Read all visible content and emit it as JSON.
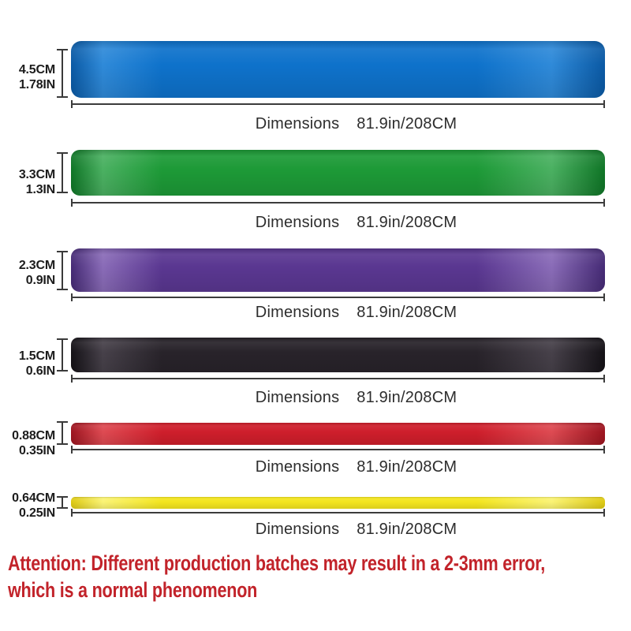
{
  "page": {
    "background": "#ffffff",
    "dimension_label": "Dimensions"
  },
  "bands": [
    {
      "color_name": "blue",
      "color": "#0e72cb",
      "highlight_color": "#2f8ad9",
      "edge_color": "#0a59a4",
      "width_cm": "4.5CM",
      "width_in": "1.78IN",
      "dim_label": "Dimensions",
      "dim_value": "81.9in/208CM"
    },
    {
      "color_name": "green",
      "color": "#1d9a37",
      "highlight_color": "#4bb162",
      "edge_color": "#0f7526",
      "width_cm": "3.3CM",
      "width_in": "1.3IN",
      "dim_label": "Dimensions",
      "dim_value": "81.9in/208CM"
    },
    {
      "color_name": "purple",
      "color": "#5a3791",
      "highlight_color": "#8a6cb8",
      "edge_color": "#452a75",
      "width_cm": "2.3CM",
      "width_in": "0.9IN",
      "dim_label": "Dimensions",
      "dim_value": "81.9in/208CM"
    },
    {
      "color_name": "black",
      "color": "#28232a",
      "highlight_color": "#47414a",
      "edge_color": "#141116",
      "width_cm": "1.5CM",
      "width_in": "0.6IN",
      "dim_label": "Dimensions",
      "dim_value": "81.9in/208CM"
    },
    {
      "color_name": "red",
      "color": "#ce1e2b",
      "highlight_color": "#de4a52",
      "edge_color": "#9c141f",
      "width_cm": "0.88CM",
      "width_in": "0.35IN",
      "dim_label": "Dimensions",
      "dim_value": "81.9in/208CM"
    },
    {
      "color_name": "yellow",
      "color": "#f3e51e",
      "highlight_color": "#faf375",
      "edge_color": "#ddc912",
      "width_cm": "0.64CM",
      "width_in": "0.25IN",
      "dim_label": "Dimensions",
      "dim_value": "81.9in/208CM"
    }
  ],
  "attention": {
    "color": "#c2232a",
    "line1": "Attention: Different production batches may result in a 2-3mm error,",
    "line2": "which is a normal phenomenon"
  }
}
